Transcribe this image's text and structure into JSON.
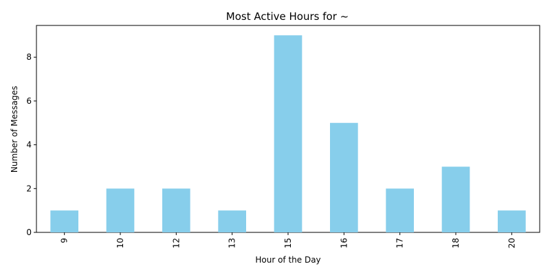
{
  "chart_data": {
    "type": "bar",
    "title": "Most Active Hours for ~",
    "xlabel": "Hour of the Day",
    "ylabel": "Number of Messages",
    "categories": [
      "9",
      "10",
      "12",
      "13",
      "15",
      "16",
      "17",
      "18",
      "20"
    ],
    "values": [
      1,
      2,
      2,
      1,
      9,
      5,
      2,
      3,
      1
    ],
    "ylim": [
      0,
      9.45
    ],
    "yticks": [
      "0",
      "2",
      "4",
      "6",
      "8"
    ],
    "bar_color": "#87ceeb",
    "grid": false,
    "legend": "none"
  }
}
